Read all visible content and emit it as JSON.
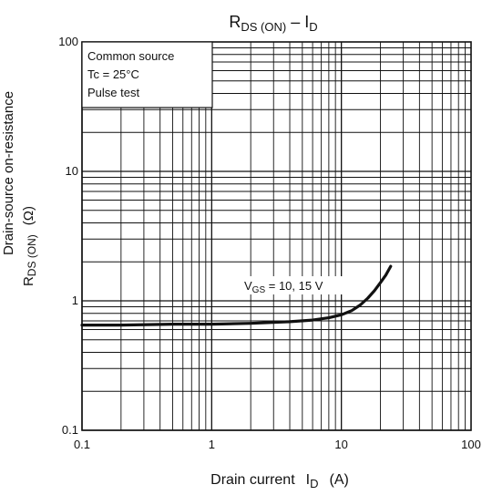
{
  "chart_data": {
    "type": "line",
    "title": {
      "main": "R",
      "sub1": "DS (ON)",
      "mid": " – I",
      "sub2": "D"
    },
    "xlabel": {
      "main": "Drain current",
      "sym": "I",
      "sub": "D",
      "unit": "(A)"
    },
    "ylabel": {
      "line1": "Drain-source on-resistance",
      "sym": "R",
      "sub": "DS (ON)",
      "unit": "(Ω)"
    },
    "x_scale": "log",
    "y_scale": "log",
    "xlim": [
      0.1,
      100
    ],
    "ylim": [
      0.1,
      100
    ],
    "x_ticks": [
      {
        "v": 0.1,
        "label": "0.1"
      },
      {
        "v": 1,
        "label": "1"
      },
      {
        "v": 10,
        "label": "10"
      },
      {
        "v": 100,
        "label": "100"
      }
    ],
    "y_ticks": [
      {
        "v": 0.1,
        "label": "0.1"
      },
      {
        "v": 1,
        "label": "1"
      },
      {
        "v": 10,
        "label": "10"
      },
      {
        "v": 100,
        "label": "100"
      }
    ],
    "grid": true,
    "conditions": [
      "Common source",
      "Tc = 25°C",
      "Pulse test"
    ],
    "series": [
      {
        "name": "V_GS = 10, 15 V",
        "label": {
          "sym": "V",
          "sub": "GS",
          "rest": " = 10, 15 V"
        },
        "x": [
          0.1,
          0.2,
          0.5,
          1.0,
          2.0,
          4.0,
          6.0,
          8.0,
          10.0,
          12.0,
          14.0,
          16.0,
          18.0,
          20.0,
          22.0,
          24.0
        ],
        "y": [
          0.65,
          0.65,
          0.66,
          0.66,
          0.67,
          0.69,
          0.71,
          0.74,
          0.78,
          0.84,
          0.93,
          1.05,
          1.2,
          1.38,
          1.58,
          1.85
        ]
      }
    ]
  },
  "colors": {
    "curve": "#111111",
    "grid": "#111111",
    "background": "#ffffff"
  }
}
